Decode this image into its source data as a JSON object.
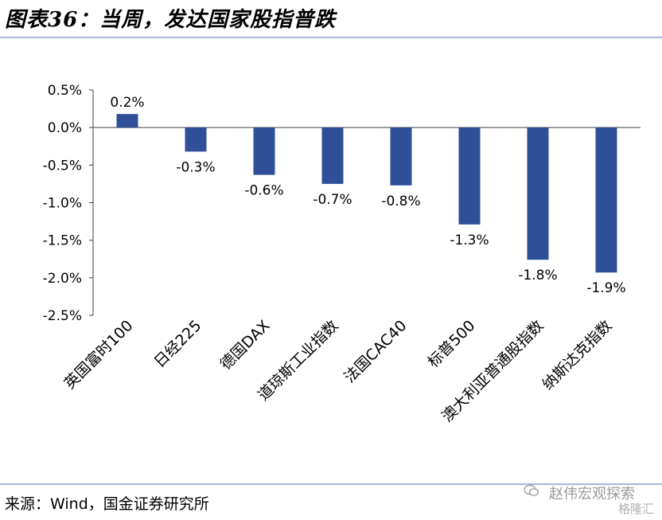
{
  "title": "图表36：当周，发达国家股指普跌",
  "source": "来源：Wind，国金证券研究所",
  "watermark": {
    "line1": "赵伟宏观探索",
    "line2": "格隆汇"
  },
  "colors": {
    "bar": "#2f4f98",
    "rule": "#a6b8d4",
    "axis": "#404040"
  },
  "chart_data": {
    "type": "bar",
    "title": "",
    "xlabel": "",
    "ylabel": "",
    "categories": [
      "英国富时100",
      "日经225",
      "德国DAX",
      "道琼斯工业指数",
      "法国CAC40",
      "标普500",
      "澳大利亚普通股指数",
      "纳斯达克指数"
    ],
    "values": [
      0.18,
      -0.32,
      -0.63,
      -0.75,
      -0.77,
      -1.29,
      -1.76,
      -1.93
    ],
    "data_labels": [
      "0.2%",
      "-0.3%",
      "-0.6%",
      "-0.7%",
      "-0.8%",
      "-1.3%",
      "-1.8%",
      "-1.9%"
    ],
    "ylim": [
      -2.5,
      0.5
    ],
    "yticks": [
      0.5,
      0.0,
      -0.5,
      -1.0,
      -1.5,
      -2.0,
      -2.5
    ],
    "ytick_labels": [
      "0.5%",
      "0.0%",
      "-0.5%",
      "-1.0%",
      "-1.5%",
      "-2.0%",
      "-2.5%"
    ],
    "grid": false,
    "legend": "none"
  }
}
